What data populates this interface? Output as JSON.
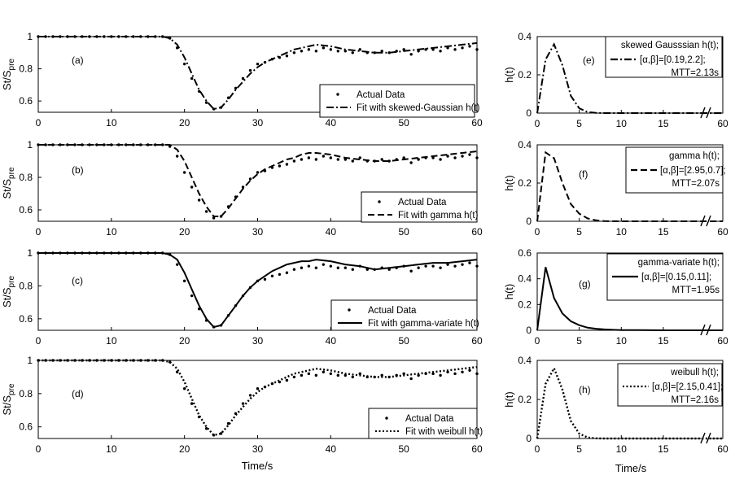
{
  "figure": {
    "xlabel": "Time/s",
    "ylabel_main": "St/S",
    "ylabel_sub": "pre",
    "ylabel_right": "h(t)"
  },
  "chart_data": [
    {
      "type": "line",
      "panel": "(a)",
      "xlim": [
        0,
        60
      ],
      "ylim": [
        0.53,
        1.0
      ],
      "xticks": [
        "0",
        "10",
        "20",
        "30",
        "40",
        "50",
        "60"
      ],
      "yticks": [
        "0.6",
        "0.8",
        "1"
      ],
      "legend": "bottom-right",
      "series": [
        {
          "name": "Actual Data",
          "style": "dots",
          "x": [
            0,
            1,
            2,
            3,
            4,
            5,
            6,
            7,
            8,
            9,
            10,
            11,
            12,
            13,
            14,
            15,
            16,
            17,
            18,
            19,
            20,
            21,
            22,
            23,
            24,
            25,
            26,
            27,
            28,
            29,
            30,
            31,
            32,
            33,
            34,
            35,
            36,
            37,
            38,
            39,
            40,
            41,
            42,
            43,
            44,
            45,
            46,
            47,
            48,
            49,
            50,
            51,
            52,
            53,
            54,
            55,
            56,
            57,
            58,
            59,
            60
          ],
          "y": [
            1,
            1,
            1,
            1,
            1,
            1,
            1,
            1,
            1,
            1,
            1,
            1,
            1,
            1,
            1,
            1,
            1,
            1,
            0.99,
            0.93,
            0.83,
            0.74,
            0.66,
            0.59,
            0.55,
            0.56,
            0.62,
            0.68,
            0.74,
            0.79,
            0.83,
            0.84,
            0.86,
            0.87,
            0.88,
            0.9,
            0.91,
            0.92,
            0.91,
            0.93,
            0.92,
            0.91,
            0.91,
            0.9,
            0.92,
            0.9,
            0.9,
            0.91,
            0.9,
            0.91,
            0.92,
            0.89,
            0.91,
            0.92,
            0.92,
            0.91,
            0.93,
            0.92,
            0.93,
            0.94,
            0.92
          ]
        },
        {
          "name": "Fit with skewed-Gaussian h(t)",
          "style": "dashdot",
          "x": [
            0,
            17,
            18,
            19,
            20,
            21,
            22,
            23,
            24,
            25,
            26,
            27,
            28,
            29,
            30,
            31,
            32,
            33,
            34,
            35,
            36,
            37,
            38,
            40,
            42,
            44,
            46,
            48,
            50,
            52,
            54,
            56,
            58,
            60
          ],
          "y": [
            1,
            1,
            0.99,
            0.95,
            0.87,
            0.77,
            0.67,
            0.6,
            0.55,
            0.56,
            0.61,
            0.67,
            0.72,
            0.77,
            0.81,
            0.84,
            0.86,
            0.88,
            0.9,
            0.92,
            0.93,
            0.94,
            0.95,
            0.94,
            0.92,
            0.91,
            0.9,
            0.9,
            0.91,
            0.92,
            0.93,
            0.94,
            0.95,
            0.96
          ]
        }
      ]
    },
    {
      "type": "line",
      "panel": "(e)",
      "xlim": [
        0,
        60
      ],
      "ylim": [
        0,
        0.4
      ],
      "xticks": [
        "0",
        "5",
        "10",
        "15",
        "60"
      ],
      "yticks": [
        "0",
        "0.2",
        "0.4"
      ],
      "legend": "top-right",
      "legend_lines": [
        "skewed Gausssian h(t);",
        "[α,β]=[0.19,2.2];",
        "MTT=2.13s"
      ],
      "series": [
        {
          "name": "skewed Gausssian h(t)",
          "style": "dashdot",
          "x": [
            0,
            1,
            2,
            3,
            4,
            5,
            6,
            7,
            8,
            10,
            12,
            15,
            60
          ],
          "y": [
            0,
            0.28,
            0.36,
            0.25,
            0.09,
            0.025,
            0.005,
            0.001,
            0,
            0,
            0,
            0,
            0
          ]
        }
      ]
    },
    {
      "type": "line",
      "panel": "(b)",
      "xlim": [
        0,
        60
      ],
      "ylim": [
        0.53,
        1.0
      ],
      "xticks": [
        "0",
        "10",
        "20",
        "30",
        "40",
        "50",
        "60"
      ],
      "yticks": [
        "0.6",
        "0.8",
        "1"
      ],
      "legend": "bottom-right",
      "series": [
        {
          "name": "Actual Data",
          "style": "dots",
          "x": [
            0,
            1,
            2,
            3,
            4,
            5,
            6,
            7,
            8,
            9,
            10,
            11,
            12,
            13,
            14,
            15,
            16,
            17,
            18,
            19,
            20,
            21,
            22,
            23,
            24,
            25,
            26,
            27,
            28,
            29,
            30,
            31,
            32,
            33,
            34,
            35,
            36,
            37,
            38,
            39,
            40,
            41,
            42,
            43,
            44,
            45,
            46,
            47,
            48,
            49,
            50,
            51,
            52,
            53,
            54,
            55,
            56,
            57,
            58,
            59,
            60
          ],
          "y": [
            1,
            1,
            1,
            1,
            1,
            1,
            1,
            1,
            1,
            1,
            1,
            1,
            1,
            1,
            1,
            1,
            1,
            1,
            0.99,
            0.93,
            0.83,
            0.74,
            0.66,
            0.59,
            0.55,
            0.56,
            0.62,
            0.68,
            0.74,
            0.79,
            0.83,
            0.84,
            0.86,
            0.87,
            0.88,
            0.9,
            0.91,
            0.92,
            0.91,
            0.93,
            0.92,
            0.91,
            0.91,
            0.9,
            0.92,
            0.9,
            0.9,
            0.91,
            0.9,
            0.91,
            0.92,
            0.89,
            0.91,
            0.92,
            0.92,
            0.91,
            0.93,
            0.92,
            0.93,
            0.94,
            0.92
          ]
        },
        {
          "name": "Fit with gamma h(t)",
          "style": "dashed",
          "x": [
            0,
            18,
            19,
            20,
            21,
            22,
            23,
            24,
            25,
            26,
            27,
            28,
            29,
            30,
            31,
            32,
            33,
            34,
            35,
            36,
            37,
            38,
            40,
            42,
            44,
            46,
            48,
            50,
            52,
            54,
            56,
            58,
            60
          ],
          "y": [
            1,
            1,
            0.97,
            0.9,
            0.8,
            0.7,
            0.62,
            0.56,
            0.56,
            0.61,
            0.67,
            0.73,
            0.78,
            0.82,
            0.85,
            0.87,
            0.89,
            0.91,
            0.92,
            0.94,
            0.95,
            0.95,
            0.94,
            0.92,
            0.91,
            0.9,
            0.9,
            0.91,
            0.92,
            0.93,
            0.94,
            0.95,
            0.96
          ]
        }
      ]
    },
    {
      "type": "line",
      "panel": "(f)",
      "xlim": [
        0,
        60
      ],
      "ylim": [
        0,
        0.4
      ],
      "xticks": [
        "0",
        "5",
        "10",
        "15",
        "60"
      ],
      "yticks": [
        "0",
        "0.2",
        "0.4"
      ],
      "legend": "top-right",
      "legend_lines": [
        "gamma h(t);",
        "[α,β]=[2.95,0.7];",
        "MTT=2.07s"
      ],
      "series": [
        {
          "name": "gamma h(t)",
          "style": "dashed",
          "x": [
            0,
            1,
            2,
            3,
            4,
            5,
            6,
            7,
            8,
            10,
            12,
            15,
            60
          ],
          "y": [
            0,
            0.36,
            0.33,
            0.2,
            0.09,
            0.04,
            0.015,
            0.005,
            0.001,
            0,
            0,
            0,
            0
          ]
        }
      ]
    },
    {
      "type": "line",
      "panel": "(c)",
      "xlim": [
        0,
        60
      ],
      "ylim": [
        0.53,
        1.0
      ],
      "xticks": [
        "0",
        "10",
        "20",
        "30",
        "40",
        "50",
        "60"
      ],
      "yticks": [
        "0.6",
        "0.8",
        "1"
      ],
      "legend": "bottom-right",
      "series": [
        {
          "name": "Actual Data",
          "style": "dots",
          "x": [
            0,
            1,
            2,
            3,
            4,
            5,
            6,
            7,
            8,
            9,
            10,
            11,
            12,
            13,
            14,
            15,
            16,
            17,
            18,
            19,
            20,
            21,
            22,
            23,
            24,
            25,
            26,
            27,
            28,
            29,
            30,
            31,
            32,
            33,
            34,
            35,
            36,
            37,
            38,
            39,
            40,
            41,
            42,
            43,
            44,
            45,
            46,
            47,
            48,
            49,
            50,
            51,
            52,
            53,
            54,
            55,
            56,
            57,
            58,
            59,
            60
          ],
          "y": [
            1,
            1,
            1,
            1,
            1,
            1,
            1,
            1,
            1,
            1,
            1,
            1,
            1,
            1,
            1,
            1,
            1,
            1,
            0.99,
            0.93,
            0.83,
            0.74,
            0.66,
            0.59,
            0.55,
            0.56,
            0.62,
            0.68,
            0.74,
            0.79,
            0.83,
            0.84,
            0.86,
            0.87,
            0.88,
            0.9,
            0.91,
            0.92,
            0.91,
            0.93,
            0.92,
            0.91,
            0.91,
            0.9,
            0.92,
            0.9,
            0.9,
            0.91,
            0.9,
            0.91,
            0.92,
            0.89,
            0.91,
            0.92,
            0.92,
            0.91,
            0.93,
            0.92,
            0.93,
            0.94,
            0.92
          ]
        },
        {
          "name": "Fit with gamma-variate h(t)",
          "style": "solid",
          "x": [
            0,
            17,
            18,
            19,
            20,
            21,
            22,
            23,
            24,
            25,
            26,
            27,
            28,
            29,
            30,
            31,
            32,
            33,
            34,
            35,
            36,
            37,
            38,
            40,
            42,
            44,
            46,
            48,
            50,
            52,
            54,
            56,
            58,
            60
          ],
          "y": [
            1,
            1,
            0.99,
            0.96,
            0.88,
            0.78,
            0.68,
            0.6,
            0.55,
            0.56,
            0.62,
            0.68,
            0.74,
            0.79,
            0.83,
            0.86,
            0.89,
            0.91,
            0.93,
            0.94,
            0.95,
            0.95,
            0.96,
            0.95,
            0.93,
            0.92,
            0.9,
            0.91,
            0.92,
            0.93,
            0.94,
            0.94,
            0.95,
            0.96
          ]
        }
      ]
    },
    {
      "type": "line",
      "panel": "(g)",
      "xlim": [
        0,
        60
      ],
      "ylim": [
        0,
        0.6
      ],
      "xticks": [
        "0",
        "5",
        "10",
        "15",
        "60"
      ],
      "yticks": [
        "0",
        "0.2",
        "0.4",
        "0.6"
      ],
      "legend": "top-right",
      "legend_lines": [
        "gamma-variate h(t);",
        "[α,β]=[0.15,0.11];",
        "MTT=1.95s"
      ],
      "series": [
        {
          "name": "gamma-variate h(t)",
          "style": "solid",
          "x": [
            0,
            1,
            2,
            3,
            4,
            5,
            6,
            7,
            8,
            9,
            10,
            12,
            15,
            60
          ],
          "y": [
            0,
            0.49,
            0.25,
            0.13,
            0.07,
            0.04,
            0.02,
            0.012,
            0.007,
            0.004,
            0.002,
            0.001,
            0,
            0
          ]
        }
      ]
    },
    {
      "type": "line",
      "panel": "(d)",
      "xlim": [
        0,
        60
      ],
      "ylim": [
        0.53,
        1.0
      ],
      "xticks": [
        "0",
        "10",
        "20",
        "30",
        "40",
        "50",
        "60"
      ],
      "yticks": [
        "0.6",
        "0.8",
        "1"
      ],
      "legend": "bottom-right",
      "series": [
        {
          "name": "Actual Data",
          "style": "dots",
          "x": [
            0,
            1,
            2,
            3,
            4,
            5,
            6,
            7,
            8,
            9,
            10,
            11,
            12,
            13,
            14,
            15,
            16,
            17,
            18,
            19,
            20,
            21,
            22,
            23,
            24,
            25,
            26,
            27,
            28,
            29,
            30,
            31,
            32,
            33,
            34,
            35,
            36,
            37,
            38,
            39,
            40,
            41,
            42,
            43,
            44,
            45,
            46,
            47,
            48,
            49,
            50,
            51,
            52,
            53,
            54,
            55,
            56,
            57,
            58,
            59,
            60
          ],
          "y": [
            1,
            1,
            1,
            1,
            1,
            1,
            1,
            1,
            1,
            1,
            1,
            1,
            1,
            1,
            1,
            1,
            1,
            1,
            0.99,
            0.93,
            0.83,
            0.74,
            0.66,
            0.59,
            0.55,
            0.56,
            0.62,
            0.68,
            0.74,
            0.79,
            0.83,
            0.84,
            0.86,
            0.87,
            0.88,
            0.9,
            0.91,
            0.92,
            0.91,
            0.93,
            0.92,
            0.91,
            0.91,
            0.9,
            0.92,
            0.9,
            0.9,
            0.91,
            0.9,
            0.91,
            0.92,
            0.89,
            0.91,
            0.92,
            0.92,
            0.91,
            0.93,
            0.92,
            0.93,
            0.94,
            0.92
          ]
        },
        {
          "name": "Fit with weibull h(t)",
          "style": "dotted",
          "x": [
            0,
            17,
            18,
            19,
            20,
            21,
            22,
            23,
            24,
            25,
            26,
            27,
            28,
            29,
            30,
            31,
            32,
            33,
            34,
            35,
            36,
            37,
            38,
            40,
            42,
            44,
            46,
            48,
            50,
            52,
            54,
            56,
            58,
            60
          ],
          "y": [
            1,
            1,
            0.99,
            0.95,
            0.87,
            0.77,
            0.67,
            0.6,
            0.55,
            0.56,
            0.61,
            0.67,
            0.72,
            0.77,
            0.81,
            0.84,
            0.86,
            0.88,
            0.9,
            0.92,
            0.93,
            0.94,
            0.95,
            0.94,
            0.92,
            0.91,
            0.9,
            0.9,
            0.91,
            0.92,
            0.93,
            0.94,
            0.95,
            0.96
          ]
        }
      ]
    },
    {
      "type": "line",
      "panel": "(h)",
      "xlim": [
        0,
        60
      ],
      "ylim": [
        0,
        0.4
      ],
      "xticks": [
        "0",
        "5",
        "10",
        "15",
        "60"
      ],
      "yticks": [
        "0",
        "0.2",
        "0.4"
      ],
      "legend": "top-right",
      "legend_lines": [
        "weibull h(t);",
        "[α,β]=[2.15,0.41];",
        "MTT=2.16s"
      ],
      "series": [
        {
          "name": "weibull h(t)",
          "style": "dotted",
          "x": [
            0,
            1,
            2,
            3,
            4,
            5,
            6,
            7,
            8,
            10,
            12,
            15,
            60
          ],
          "y": [
            0,
            0.28,
            0.36,
            0.25,
            0.09,
            0.025,
            0.005,
            0.001,
            0,
            0,
            0,
            0,
            0
          ]
        }
      ]
    }
  ]
}
